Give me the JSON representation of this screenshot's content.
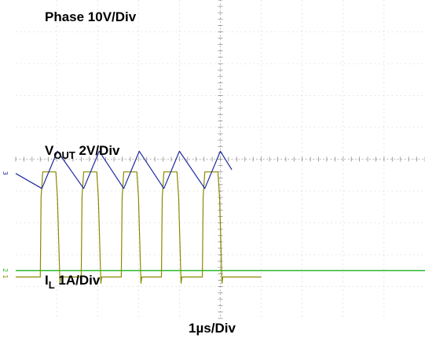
{
  "chart_data": {
    "type": "line",
    "grid": true,
    "xlim": [
      0,
      10
    ],
    "time_div": "1µs/Div",
    "channels": {
      "phase": {
        "name_main": "Phase 10V/Div",
        "color": "#8a8a00",
        "marker": "1",
        "ylim": [
          -1.3,
          8.7
        ],
        "x": [
          0.0,
          0.6,
          0.62,
          0.66,
          0.98,
          1.02,
          1.08,
          1.1,
          1.6,
          1.62,
          1.66,
          1.98,
          2.02,
          2.08,
          2.1,
          2.58,
          2.6,
          2.64,
          2.96,
          3.0,
          3.06,
          3.08,
          3.56,
          3.58,
          3.62,
          3.94,
          3.98,
          4.04,
          4.06,
          4.56,
          4.58,
          4.62,
          4.94,
          4.98,
          5.04,
          5.06,
          6.0
        ],
        "y": [
          0.0,
          0.0,
          2.5,
          3.3,
          3.3,
          2.5,
          -0.2,
          0.0,
          0.0,
          2.5,
          3.3,
          3.3,
          2.5,
          -0.2,
          0.0,
          0.0,
          2.5,
          3.3,
          3.3,
          2.5,
          -0.2,
          0.0,
          0.0,
          2.5,
          3.3,
          3.3,
          2.5,
          -0.2,
          0.0,
          0.0,
          2.5,
          3.3,
          3.3,
          2.5,
          -0.2,
          0.0,
          0.0
        ]
      },
      "vout": {
        "name_main": "V",
        "name_sub": "OUT",
        "name_rest": " 2V/Div",
        "color": "#1db31d",
        "marker": "2",
        "ylim": [
          -1.5,
          8.5
        ],
        "x": [
          0,
          10
        ],
        "y": [
          0,
          0
        ]
      },
      "il": {
        "name_main": "I",
        "name_sub": "L",
        "name_rest": " 1A/Div",
        "color": "#1e2a9c",
        "marker": "3",
        "ylim": [
          -4.55,
          5.45
        ],
        "x": [
          0.0,
          0.64,
          1.02,
          1.66,
          2.04,
          2.64,
          3.02,
          3.62,
          4.0,
          4.62,
          5.0,
          5.28
        ],
        "y": [
          0.0,
          -0.47,
          0.7,
          -0.47,
          0.7,
          -0.47,
          0.7,
          -0.47,
          0.7,
          -0.47,
          0.7,
          0.12
        ]
      }
    }
  }
}
